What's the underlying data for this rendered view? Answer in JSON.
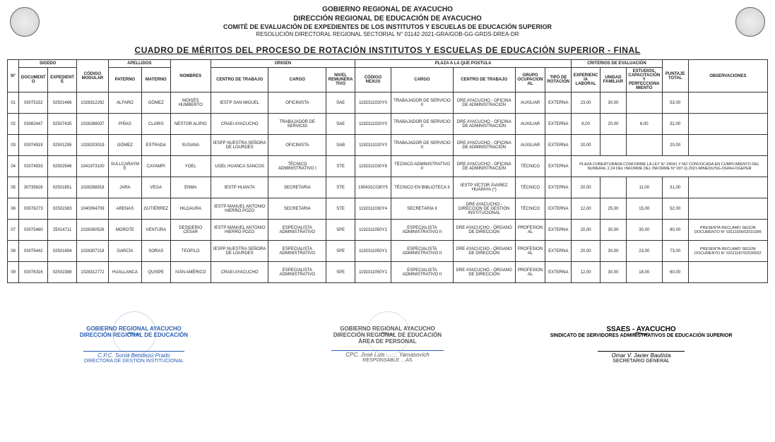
{
  "header": {
    "line1": "GOBIERNO REGIONAL DE AYACUCHO",
    "line2": "DIRECCIÓN REGIONAL DE EDUCACIÓN DE AYACUCHO",
    "line3": "COMITÉ DE EVALUACIÓN DE EXPEDIENTES DE LOS INSTITUTOS Y ESCUELAS DE EDUCACIÓN SUPERIOR",
    "line4": "RESOLUCIÓN DIRECTORAL REGIONAL SECTORIAL N° 01142-2021-GRA/GOB-GG-GRDS-DREA-DR"
  },
  "title": "CUADRO DE MÉRITOS DEL PROCESO DE ROTACIÓN INSTITUTOS Y ESCUELAS DE EDUCACIÓN SUPERIOR - FINAL",
  "colgroups": {
    "sigedo": "SIGEDO",
    "apellidos": "APELLIDOS",
    "origen": "ORIGEN",
    "plaza": "PLAZA A LA QUE POSTULA",
    "criterios": "CRITERIOS DE EVALUACIÓN"
  },
  "columns": {
    "n": "N°",
    "documento": "DOCUMENTO",
    "expediente": "EXPEDIENTE",
    "codmod": "CÓDIGO MODULAR",
    "paterno": "PATERNO",
    "materno": "MATERNO",
    "nombres": "NOMBRES",
    "centro_o": "CENTRO DE TRABAJO",
    "cargo_o": "CARGO",
    "nivel": "NIVEL REMUNERATIVO",
    "codnexus": "CÓDIGO NEXUS",
    "cargo_p": "CARGO",
    "centro_p": "CENTRO DE TRABAJO",
    "grupo": "GRUPO OCUPACIONAL",
    "tipo": "TIPO DE ROTACIÓN",
    "exp": "EXPERIENCIA LABORAL",
    "unidad": "UNIDAD FAMILIAR",
    "estudios": "ESTUDIOS, CAPACITACIÓN Y PERFECCIONAMIENTO",
    "ptotal": "PUNTAJE TOTAL",
    "obs": "OBSERVACIONES"
  },
  "rows": [
    {
      "n": "01",
      "documento": "03075152",
      "expediente": "02501466",
      "codmod": "1028312292",
      "paterno": "ALFARO",
      "materno": "GÓMEZ",
      "nombres": "MOISÉS HUMBERTO",
      "centro_o": "IESTP SAN MIGUEL",
      "cargo_o": "OFICINISTA",
      "nivel": "SAE",
      "codnexus": "1192311020Y0",
      "cargo_p": "TRABAJADOR DE SERVICIO II",
      "centro_p": "DRE AYACUCHO - OFICINA DE ADMINISTRACIÓN",
      "grupo": "AUXILIAR",
      "tipo": "EXTERNA",
      "exp": "23,00",
      "unidad": "30,00",
      "estudios": "",
      "ptotal": "53,00",
      "obs": ""
    },
    {
      "n": "02",
      "documento": "03082447",
      "expediente": "02507435",
      "codmod": "1028288037",
      "paterno": "PIÑAS",
      "materno": "CLARIS",
      "nombres": "NÉSTOR ALIPIO",
      "centro_o": "CRAEI AYACUCHO",
      "cargo_o": "TRABAJADOR DE SERVICIO",
      "nivel": "SAE",
      "codnexus": "1192311020Y0",
      "cargo_p": "TRABAJADOR DE SERVICIO II",
      "centro_p": "DRE AYACUCHO - OFICINA DE ADMINISTRACIÓN",
      "grupo": "AUXILIAR",
      "tipo": "EXTERNA",
      "exp": "6,00",
      "unidad": "20,00",
      "estudios": "6,00",
      "ptotal": "32,00",
      "obs": ""
    },
    {
      "n": "03",
      "documento": "03074919",
      "expediente": "02501295",
      "codmod": "1028203019",
      "paterno": "GÓMEZ",
      "materno": "ESTRADA",
      "nombres": "SUSANA",
      "centro_o": "IESPP NUESTRA SEÑORA DE LOURDES",
      "cargo_o": "OFICINISTA",
      "nivel": "SAB",
      "codnexus": "1192311020Y0",
      "cargo_p": "TRABAJADOR DE SERVICIO II",
      "centro_p": "DRE AYACUCHO - OFICINA DE ADMINISTRACIÓN",
      "grupo": "AUXILIAR",
      "tipo": "EXTERNA",
      "exp": "20,00",
      "unidad": "",
      "estudios": "",
      "ptotal": "20,00",
      "obs": ""
    },
    {
      "n": "04",
      "documento": "03074933",
      "expediente": "02502946",
      "codmod": "1041973100",
      "paterno": "SULLCARAYME",
      "materno": "CAYAMPI",
      "nombres": "YOEL",
      "centro_o": "UGEL HUANCA SANCOS",
      "cargo_o": "TÉCNICO ADMINISTRATIVO I",
      "nivel": "STE",
      "codnexus": "1192311030Y8",
      "cargo_p": "TÉCNICO ADMINISTRATIVO II",
      "centro_p": "DRE AYACUCHO - OFICINA DE ADMINISTRACIÓN",
      "grupo": "TÉCNICO",
      "tipo": "EXTERNA",
      "exp": "",
      "unidad": "",
      "estudios": "",
      "ptotal": "",
      "obs": "PLAZA COBERTURADA CONFORME LA LEY N° 24041 Y NO CONVOCADA EN CUMPLIMIENTO DEL NUMERAL 2.24 DEL INFORME DEL INFORME N° 007-Q-2021-MINEDU/SG-OGRH-OGEPER",
      "obsSpan": true
    },
    {
      "n": "05",
      "documento": "30735628",
      "expediente": "02501851",
      "codmod": "1028268918",
      "paterno": "JARA",
      "materno": "VEGA",
      "nombres": "ENMA",
      "centro_o": "IESTP HUANTA",
      "cargo_o": "SECRETARIA",
      "nivel": "STE",
      "codnexus": "190431C030Y5",
      "cargo_p": "TÉCNICO EN BIBLIOTECA II",
      "centro_p": "IESTP VÍCTOR ÁVAREZ HUAPAYA (*)",
      "grupo": "TÉCNICO",
      "tipo": "EXTERNA",
      "exp": "20,00",
      "unidad": "",
      "estudios": "11,00",
      "ptotal": "31,00",
      "obs": ""
    },
    {
      "n": "06",
      "documento": "03076273",
      "expediente": "02502363",
      "codmod": "1040094709",
      "paterno": "ARENAS",
      "materno": "GUTIÉRREZ",
      "nombres": "HILDAURA",
      "centro_o": "IESTP MANUEL ANTONIO HIERRO POZO",
      "cargo_o": "SECRETARIA",
      "nivel": "STE",
      "codnexus": "1192311030Y4",
      "cargo_p": "SECRETARIA II",
      "centro_p": "DRE AYACUCHO - DIRECCIÓN DE GESTIÓN INSTITUCIONAL",
      "grupo": "TÉCNICO",
      "tipo": "EXTERNA",
      "exp": "12,00",
      "unidad": "25,00",
      "estudios": "15,00",
      "ptotal": "52,00",
      "obs": ""
    },
    {
      "n": "07",
      "documento": "03075460",
      "expediente": "25014711",
      "codmod": "1028260526",
      "paterno": "MOROTE",
      "materno": "VENTURA",
      "nombres": "DESIDERIO CÉSAR",
      "centro_o": "IESTP MANUEL ANTONIO HIERRO POZO",
      "cargo_o": "ESPECIALISTA ADMINISTRATIVO",
      "nivel": "SPE",
      "codnexus": "1192311050Y1",
      "cargo_p": "ESPECIALISTA ADMINISTRATIVO II",
      "centro_p": "DRE AYACUCHO - ÓRGANO DE DIRECCIÓN",
      "grupo": "PROFESIONAL",
      "tipo": "EXTERNA",
      "exp": "20,00",
      "unidad": "30,00",
      "estudios": "30,00",
      "ptotal": "80,00",
      "obs": "PRESENTA RECLAMO SEGÚN DOCUMENTO N° 03111936/02531095"
    },
    {
      "n": "08",
      "documento": "03075442",
      "expediente": "02501694",
      "codmod": "1028307218",
      "paterno": "GARCÍA",
      "materno": "SORAS",
      "nombres": "TEÓFILO",
      "centro_o": "IESPP NUESTRA SEÑORA DE LOURDES",
      "cargo_o": "ESPECIALISTA ADMINISTRATIVO",
      "nivel": "SPE",
      "codnexus": "1192311050Y1",
      "cargo_p": "ESPECIALISTA ADMINISTRATIVO II",
      "centro_p": "DRE AYACUCHO - ÓRGANO DE DIRECCIÓN",
      "grupo": "PROFESIONAL",
      "tipo": "EXTERNA",
      "exp": "20,00",
      "unidad": "30,00",
      "estudios": "23,00",
      "ptotal": "73,00",
      "obs": "PRESENTA RECLAMO SEGÚN DOCUMENTO N° 03111187/02530552"
    },
    {
      "n": "09",
      "documento": "03076316",
      "expediente": "02502388",
      "codmod": "1028312772",
      "paterno": "HUALLANCA",
      "materno": "QUISPE",
      "nombres": "IVÁN AMÉRICO",
      "centro_o": "CRAEI AYACUCHO",
      "cargo_o": "ESPECIALISTA ADMINISTRATIVO",
      "nivel": "SPE",
      "codnexus": "1192311050Y1",
      "cargo_p": "ESPECIALISTA ADMINISTRATIVO II",
      "centro_p": "DRE AYACUCHO - ÓRGANO DE DIRECCIÓN",
      "grupo": "PROFESIONAL",
      "tipo": "EXTERNA",
      "exp": "12,00",
      "unidad": "30,00",
      "estudios": "18,00",
      "ptotal": "60,00",
      "obs": ""
    }
  ],
  "signatures": {
    "left": {
      "org1": "GOBIERNO REGIONAL AYACUCHO",
      "org2": "DIRECCIÓN REGIONAL DE EDUCACIÓN",
      "name": "C.P.C. Sonia Bendezú Prado",
      "role": "DIRECTORA DE GESTIÓN INSTITUCIONAL"
    },
    "center": {
      "org1": "GOBIERNO REGIONAL AYACUCHO",
      "org2": "DIRECCIÓN REGIONAL DE EDUCACIÓN",
      "org3": "ÁREA DE PERSONAL",
      "name": "CPC. José Luis …… Yamasovich",
      "role": "RESPONSABLE …AS"
    },
    "right": {
      "org1": "SSAES - AYACUCHO",
      "org2": "SINDICATO DE SERVIDORES ADMINISTRATIVOS DE EDUCACIÓN SUPERIOR",
      "name": "Omar V. Javier Bautista",
      "role": "SECRETARIO GENERAL"
    }
  }
}
